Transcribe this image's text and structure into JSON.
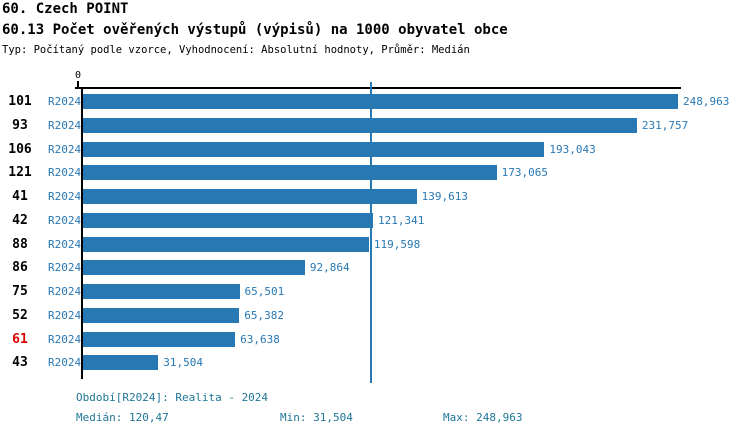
{
  "header": {
    "title": "60. Czech POINT",
    "subtitle": "60.13 Počet ověřených výstupů (výpisů) na 1000 obyvatel obce",
    "meta": "Typ: Počítaný podle vzorce, Vyhodnocení: Absolutní hodnoty, Průměr: Medián"
  },
  "chart_data": {
    "type": "bar",
    "orientation": "horizontal",
    "title": "60.13 Počet ověřených výstupů (výpisů) na 1000 obyvatel obce",
    "axis": {
      "origin_label": "0",
      "xmin": 0,
      "xmax": 248.963,
      "median_value": 120.47
    },
    "series_label": "R2024",
    "rows": [
      {
        "category": "101",
        "value": 248.963,
        "value_label": "248,963",
        "highlight": false
      },
      {
        "category": "93",
        "value": 231.757,
        "value_label": "231,757",
        "highlight": false
      },
      {
        "category": "106",
        "value": 193.043,
        "value_label": "193,043",
        "highlight": false
      },
      {
        "category": "121",
        "value": 173.065,
        "value_label": "173,065",
        "highlight": false
      },
      {
        "category": "41",
        "value": 139.613,
        "value_label": "139,613",
        "highlight": false
      },
      {
        "category": "42",
        "value": 121.341,
        "value_label": "121,341",
        "highlight": false
      },
      {
        "category": "88",
        "value": 119.598,
        "value_label": "119,598",
        "highlight": false
      },
      {
        "category": "86",
        "value": 92.864,
        "value_label": "92,864",
        "highlight": false
      },
      {
        "category": "75",
        "value": 65.501,
        "value_label": "65,501",
        "highlight": false
      },
      {
        "category": "52",
        "value": 65.382,
        "value_label": "65,382",
        "highlight": false
      },
      {
        "category": "61",
        "value": 63.638,
        "value_label": "63,638",
        "highlight": true
      },
      {
        "category": "43",
        "value": 31.504,
        "value_label": "31,504",
        "highlight": false
      }
    ],
    "colors": {
      "bar": "#2878b4",
      "label": "#2878b4",
      "median_line": "#2878b4",
      "highlight_text": "#dd0000",
      "footer_text": "#1e7696",
      "axis": "#000000"
    }
  },
  "footer": {
    "period": "Období[R2024]: Realita - 2024",
    "median": "Medián: 120,47",
    "min": "Min: 31,504",
    "max": "Max: 248,963"
  }
}
